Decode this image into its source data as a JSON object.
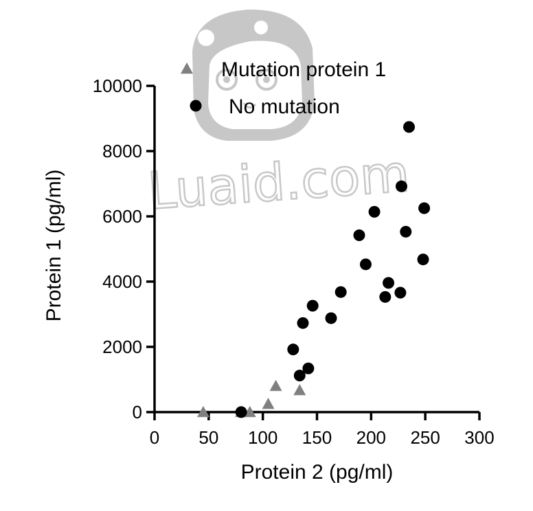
{
  "chart_data": {
    "type": "scatter",
    "title": "",
    "xlabel": "Protein 2 (pg/ml)",
    "ylabel": "Protein 1 (pg/ml)",
    "xlim": [
      0,
      300
    ],
    "ylim": [
      0,
      10000
    ],
    "x_ticks": [
      0,
      50,
      100,
      150,
      200,
      250,
      300
    ],
    "y_ticks": [
      0,
      2000,
      4000,
      6000,
      8000,
      10000
    ],
    "grid": false,
    "legend_position": "top-left",
    "series": [
      {
        "name": "Mutation protein 1",
        "marker": "triangle",
        "color": "#808080",
        "points": [
          [
            45,
            0
          ],
          [
            80,
            0
          ],
          [
            88,
            0
          ],
          [
            105,
            250
          ],
          [
            112,
            800
          ],
          [
            134,
            670
          ]
        ]
      },
      {
        "name": "No mutation",
        "marker": "circle",
        "color": "#000000",
        "points": [
          [
            80,
            0
          ],
          [
            128,
            1920
          ],
          [
            134,
            1120
          ],
          [
            137,
            2730
          ],
          [
            142,
            1340
          ],
          [
            146,
            3260
          ],
          [
            163,
            2880
          ],
          [
            172,
            3680
          ],
          [
            189,
            5420
          ],
          [
            195,
            4530
          ],
          [
            203,
            6140
          ],
          [
            213,
            3530
          ],
          [
            216,
            3960
          ],
          [
            227,
            3660
          ],
          [
            228,
            6920
          ],
          [
            232,
            5530
          ],
          [
            235,
            8740
          ],
          [
            248,
            4680
          ],
          [
            249,
            6250
          ]
        ]
      }
    ]
  },
  "watermark": {
    "text": "Luaid.com"
  }
}
